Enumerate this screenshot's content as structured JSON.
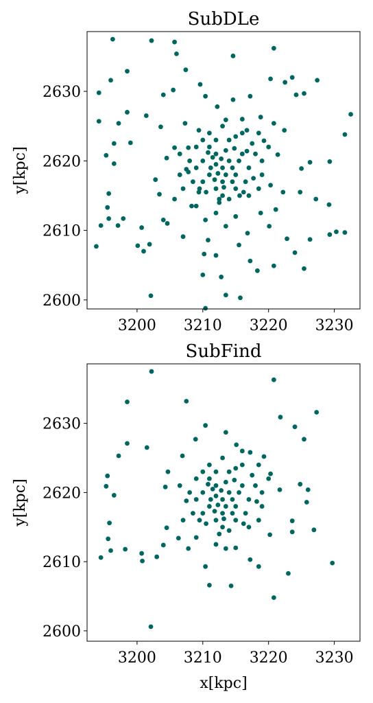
{
  "chart_data": [
    {
      "type": "scatter",
      "title": "SubDLe",
      "ylabel": "y[kpc]",
      "color": "#006660",
      "xlim": [
        3192.4,
        3233.9
      ],
      "ylim": [
        2598.7,
        2638.6
      ],
      "xticks": [
        3200,
        3210,
        3220,
        3230
      ],
      "yticks": [
        2600,
        2610,
        2620,
        2630
      ],
      "x": [
        3196.3,
        3202.2,
        3205.7,
        3206,
        3214.6,
        3220.8,
        3194.2,
        3196,
        3198.5,
        3194.2,
        3198.5,
        3197.2,
        3199,
        3196.5,
        3195.3,
        3196.5,
        3195.7,
        3195.5,
        3194.5,
        3193.8,
        3195.7,
        3197.9,
        3197.1,
        3200.7,
        3200.1,
        3201,
        3201.9,
        3202.1,
        3210,
        3212.8,
        3210.4,
        3213.5,
        3215.7,
        3210.2,
        3212,
        3217.2,
        3218.3,
        3220.8,
        3224,
        3225.4,
        3226.3,
        3229.3,
        3230.3,
        3231.6,
        3229.2,
        3227.2,
        3231.6,
        3232.5,
        3227.4,
        3223.6,
        3222.5,
        3225.4,
        3224.2,
        3229.3,
        3226.3,
        3201.4,
        3204,
        3207.4,
        3209.6,
        3205.5,
        3203.6,
        3202.8,
        3203.4,
        3204,
        3204.6,
        3207,
        3210.8,
        3215.5,
        3216.8,
        3220.1,
        3222.8,
        3221.1,
        3222.2,
        3224.8,
        3225,
        3222.4,
        3220.8,
        3218.8,
        3217.2,
        3220.3,
        3214.6,
        3212.2,
        3210.4,
        3207.3,
        3205.7,
        3204.5,
        3206.5,
        3205.7,
        3208.3,
        3210.4,
        3213.5,
        3218.8,
        3220.3,
        3221.4,
        3219.3,
        3216.7,
        3213.5,
        3209.4,
        3207.8,
        3207.8,
        3209.4,
        3212.5,
        3215.6,
        3217.7,
        3216.7,
        3210,
        3211,
        3212,
        3213,
        3214,
        3215,
        3216,
        3212,
        3211,
        3214,
        3213,
        3210,
        3209,
        3217,
        3215,
        3212,
        3213.5,
        3214.5,
        3211.5,
        3210.5,
        3216.5,
        3212.5,
        3208,
        3218,
        3209,
        3215,
        3211,
        3213,
        3217,
        3208.5,
        3219,
        3214,
        3216,
        3210,
        3212,
        3213.5,
        3214.5,
        3211.2,
        3212.8,
        3215.5,
        3210.8,
        3213.2,
        3216.2,
        3209.5,
        3207.5,
        3218.5,
        3217.5,
        3211.8,
        3214.8,
        3212.3,
        3219,
        3206.5,
        3220,
        3213,
        3212,
        3215,
        3209,
        3207,
        3218.5,
        3216
      ],
      "y": [
        2637.5,
        2637.3,
        2637.1,
        2635.4,
        2635.1,
        2636.2,
        2629.8,
        2631.6,
        2632.9,
        2625.7,
        2627,
        2625.4,
        2622.6,
        2622.5,
        2620.8,
        2619.6,
        2615.3,
        2613.3,
        2610.7,
        2607.7,
        2611.7,
        2611.7,
        2610.7,
        2610.4,
        2607.8,
        2607,
        2608,
        2600.6,
        2603.6,
        2603.3,
        2598.8,
        2600.7,
        2600.3,
        2606.6,
        2606.4,
        2605.6,
        2604.2,
        2604.9,
        2606.8,
        2604.5,
        2608.7,
        2609.4,
        2609.8,
        2609.7,
        2613.7,
        2614.5,
        2623.8,
        2626.7,
        2631.6,
        2632,
        2631.3,
        2629.7,
        2629.5,
        2619.9,
        2619.8,
        2626.5,
        2629.5,
        2633.1,
        2631,
        2630.2,
        2624.9,
        2617.3,
        2615.2,
        2611.5,
        2611,
        2609.1,
        2608.6,
        2607.9,
        2609.6,
        2610.6,
        2608.8,
        2613,
        2615.5,
        2615.5,
        2618.9,
        2624.4,
        2625.4,
        2626.3,
        2629.3,
        2631.8,
        2628.8,
        2627.8,
        2629.3,
        2625.4,
        2621.9,
        2620.4,
        2618,
        2614.5,
        2613.5,
        2611.5,
        2610.6,
        2612.5,
        2616.5,
        2620.9,
        2622.9,
        2624.4,
        2625.9,
        2624.4,
        2621.9,
        2618.4,
        2615.5,
        2614.5,
        2615,
        2617.5,
        2621.4,
        2620,
        2618,
        2621,
        2617,
        2620,
        2618,
        2621,
        2616,
        2622,
        2623,
        2619,
        2617,
        2619,
        2619,
        2616,
        2619.5,
        2621.5,
        2617,
        2620.5,
        2615.5,
        2617,
        2614,
        2620,
        2621,
        2622,
        2623.5,
        2624,
        2615,
        2615,
        2617,
        2618,
        2614.5,
        2624,
        2623,
        2623,
        2618,
        2619,
        2619,
        2620.3,
        2620,
        2621.2,
        2616.2,
        2615.5,
        2616,
        2618.8,
        2616,
        2622.5,
        2617.3,
        2621.8,
        2618.2,
        2620,
        2621,
        2622,
        2625,
        2612.5,
        2612,
        2613.5,
        2616,
        2624,
        2626
      ]
    },
    {
      "type": "scatter",
      "title": "SubFind",
      "ylabel": "y[kpc]",
      "xlabel": "x[kpc]",
      "color": "#006660",
      "xlim": [
        3192.4,
        3233.9
      ],
      "ylim": [
        2598.5,
        2638.6
      ],
      "xticks": [
        3200,
        3210,
        3220,
        3230
      ],
      "yticks": [
        2600,
        2610,
        2620,
        2630
      ],
      "x": [
        3202.2,
        3198.5,
        3220.8,
        3207.5,
        3227.3,
        3221.8,
        3224,
        3225.4,
        3198.5,
        3197.2,
        3195.5,
        3195.3,
        3196.5,
        3195.8,
        3195.6,
        3196,
        3198.2,
        3194.5,
        3200.7,
        3200.8,
        3203,
        3204,
        3201.5,
        3202.1,
        3220.8,
        3214.3,
        3211,
        3223,
        3229.7,
        3226.9,
        3226,
        3225.8,
        3224.8,
        3221.7,
        3223.6,
        3223.6,
        3220.2,
        3218.5,
        3217.2,
        3213.5,
        3210.4,
        3207.8,
        3206.3,
        3204.5,
        3204.3,
        3204.7,
        3206.9,
        3208.9,
        3210.4,
        3213.5,
        3215.1,
        3217.2,
        3219.3,
        3220.3,
        3218.2,
        3210,
        3211,
        3212,
        3213,
        3214,
        3215,
        3216,
        3212,
        3211,
        3214,
        3213,
        3210,
        3209,
        3217,
        3215,
        3212,
        3213.5,
        3214.5,
        3211.5,
        3210.5,
        3216.5,
        3212.5,
        3208,
        3218,
        3209,
        3215,
        3211,
        3213,
        3217,
        3208.5,
        3219,
        3214,
        3216,
        3210,
        3212,
        3213.5,
        3214.5,
        3211.2,
        3212.8,
        3215.5,
        3210.8,
        3213.2,
        3216.2,
        3209.5,
        3207.5,
        3218.5,
        3217.5,
        3211.8,
        3214.8,
        3212.3,
        3219,
        3206.5,
        3220,
        3213,
        3212,
        3215,
        3209,
        3207,
        3218.5,
        3216
      ],
      "y": [
        2637.5,
        2633.1,
        2636.3,
        2633.2,
        2631.6,
        2630.9,
        2629.5,
        2627.7,
        2627.1,
        2625.3,
        2622.4,
        2620.9,
        2619.6,
        2615.6,
        2613.3,
        2611.6,
        2611.8,
        2610.6,
        2611.2,
        2610.1,
        2610.7,
        2612.4,
        2626.5,
        2600.6,
        2604.8,
        2606.5,
        2606.6,
        2608.3,
        2609.8,
        2614.6,
        2620.4,
        2618.6,
        2621.2,
        2620.4,
        2615.9,
        2614.3,
        2613.9,
        2609.3,
        2610.3,
        2611.9,
        2609.3,
        2611.9,
        2613.4,
        2614.9,
        2620.8,
        2623,
        2625.3,
        2627.7,
        2629.7,
        2628.7,
        2626.9,
        2625.8,
        2625.2,
        2622.7,
        2618.7,
        2620,
        2618,
        2621,
        2617,
        2620,
        2618,
        2621,
        2616,
        2622,
        2623,
        2619,
        2617,
        2619,
        2619,
        2616,
        2619.5,
        2621.5,
        2617,
        2620.5,
        2615.5,
        2617,
        2614,
        2620,
        2621,
        2622,
        2623.5,
        2624,
        2615,
        2615,
        2617,
        2618,
        2614.5,
        2624,
        2623,
        2623,
        2618,
        2619,
        2619,
        2620.3,
        2620,
        2621.2,
        2616.2,
        2615.5,
        2616,
        2618.8,
        2616,
        2622.5,
        2617.3,
        2621.8,
        2618.2,
        2620,
        2621,
        2622,
        2625,
        2612.5,
        2612,
        2613.5,
        2616,
        2624,
        2626
      ]
    }
  ]
}
